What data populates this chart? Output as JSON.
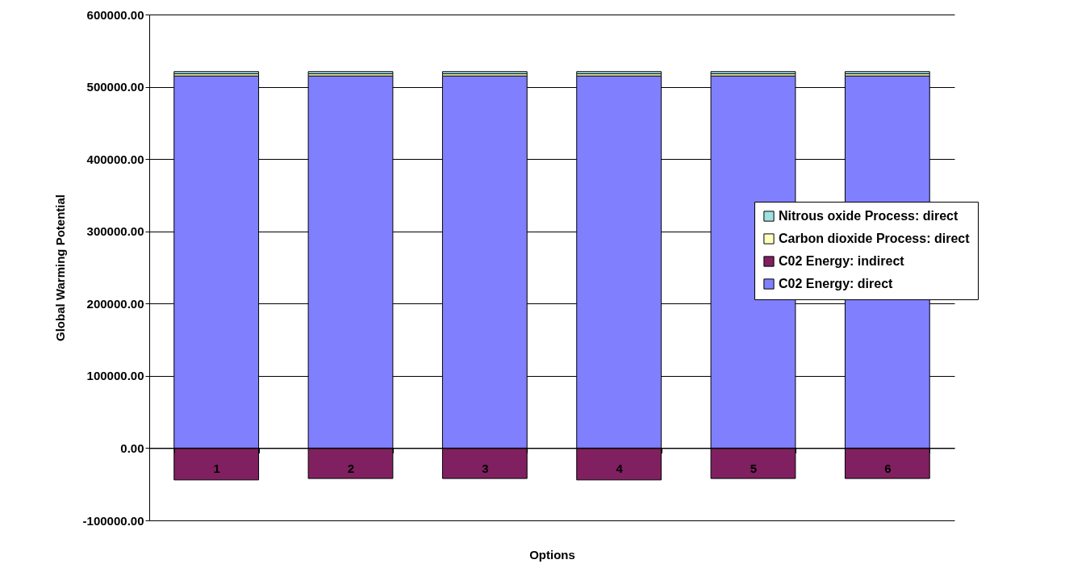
{
  "chart_data": {
    "type": "bar",
    "stacked": true,
    "xlabel": "Options",
    "ylabel": "Global Warming Potential",
    "categories": [
      "1",
      "2",
      "3",
      "4",
      "5",
      "6"
    ],
    "series": [
      {
        "name": "C02 Energy: direct",
        "color": "#8080ff",
        "values": [
          515000,
          515000,
          515000,
          515000,
          515000,
          515000
        ]
      },
      {
        "name": "C02 Energy: indirect",
        "color": "#802060",
        "values": [
          -44000,
          -42000,
          -42000,
          -44000,
          -42000,
          -42000
        ]
      },
      {
        "name": "Carbon dioxide Process: direct",
        "color": "#ffffc0",
        "values": [
          3000,
          3000,
          3000,
          3000,
          3000,
          3000
        ]
      },
      {
        "name": "Nitrous oxide Process: direct",
        "color": "#a0e0e0",
        "values": [
          3000,
          3000,
          3000,
          3000,
          3000,
          3000
        ]
      }
    ],
    "ylim": [
      -100000,
      600000
    ],
    "yticks": [
      {
        "value": -100000,
        "label": "-100000.00"
      },
      {
        "value": 0,
        "label": "0.00"
      },
      {
        "value": 100000,
        "label": "100000.00"
      },
      {
        "value": 200000,
        "label": "200000.00"
      },
      {
        "value": 300000,
        "label": "300000.00"
      },
      {
        "value": 400000,
        "label": "400000.00"
      },
      {
        "value": 500000,
        "label": "500000.00"
      },
      {
        "value": 600000,
        "label": "600000.00"
      }
    ],
    "grid": "y",
    "legend": "right"
  }
}
